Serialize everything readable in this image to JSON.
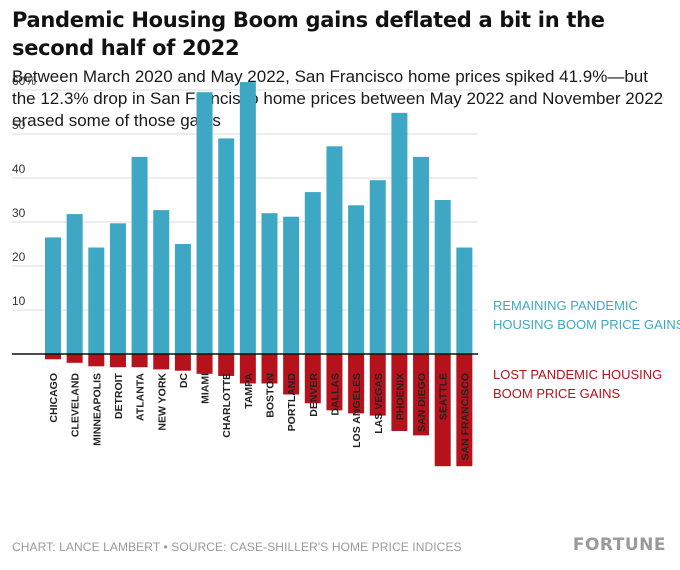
{
  "header": {
    "title": "Pandemic Housing Boom gains deflated a bit in the second half of 2022",
    "subtitle": "Between March 2020 and May 2022, San Francisco home prices spiked 41.9%—but the 12.3% drop in San Francisco home prices between May 2022 and November 2022 erased some of those gains"
  },
  "footer": {
    "credit": "CHART: LANCE LAMBERT • SOURCE: CASE-SHILLER'S HOME PRICE INDICES",
    "brand": "FORTUNE"
  },
  "chart_data": {
    "type": "bar",
    "title": "Pandemic Housing Boom gains deflated a bit in the second half of 2022",
    "categories": [
      "CHICAGO",
      "CLEVELAND",
      "MINNEAPOLIS",
      "DETROIT",
      "ATLANTA",
      "NEW YORK",
      "DC",
      "MIAMI",
      "CHARLOTTE",
      "TAMPA",
      "BOSTON",
      "PORTLAND",
      "DENVER",
      "DALLAS",
      "LOS ANGELES",
      "LAS VEGAS",
      "PHOENIX",
      "SAN DIEGO",
      "SEATTLE",
      "SAN FRANCISCO"
    ],
    "series": [
      {
        "name": "REMAINING PANDEMIC HOUSING BOOM PRICE GAINS",
        "color": "#3ea8c4",
        "values": [
          26.5,
          31.8,
          24.2,
          29.7,
          44.8,
          32.7,
          25.0,
          59.5,
          49.0,
          61.8,
          32.0,
          31.2,
          36.8,
          47.2,
          33.8,
          39.5,
          54.8,
          44.8,
          35.0,
          24.2
        ]
      },
      {
        "name": "LOST PANDEMIC HOUSING BOOM PRICE GAINS",
        "color": "#b5121b",
        "values": [
          -1.2,
          -2.0,
          -2.8,
          -3.0,
          -3.0,
          -3.5,
          -3.8,
          -4.5,
          -5.0,
          -6.7,
          -6.7,
          -9.2,
          -11.2,
          -12.8,
          -13.5,
          -14.0,
          -17.5,
          -18.5,
          -25.5,
          -25.5
        ]
      }
    ],
    "xlabel": "",
    "ylabel": "",
    "yticks": [
      "10",
      "20",
      "30",
      "40",
      "50",
      "60%"
    ],
    "ylim": [
      -27,
      62
    ],
    "grid": true,
    "legend": "right"
  }
}
